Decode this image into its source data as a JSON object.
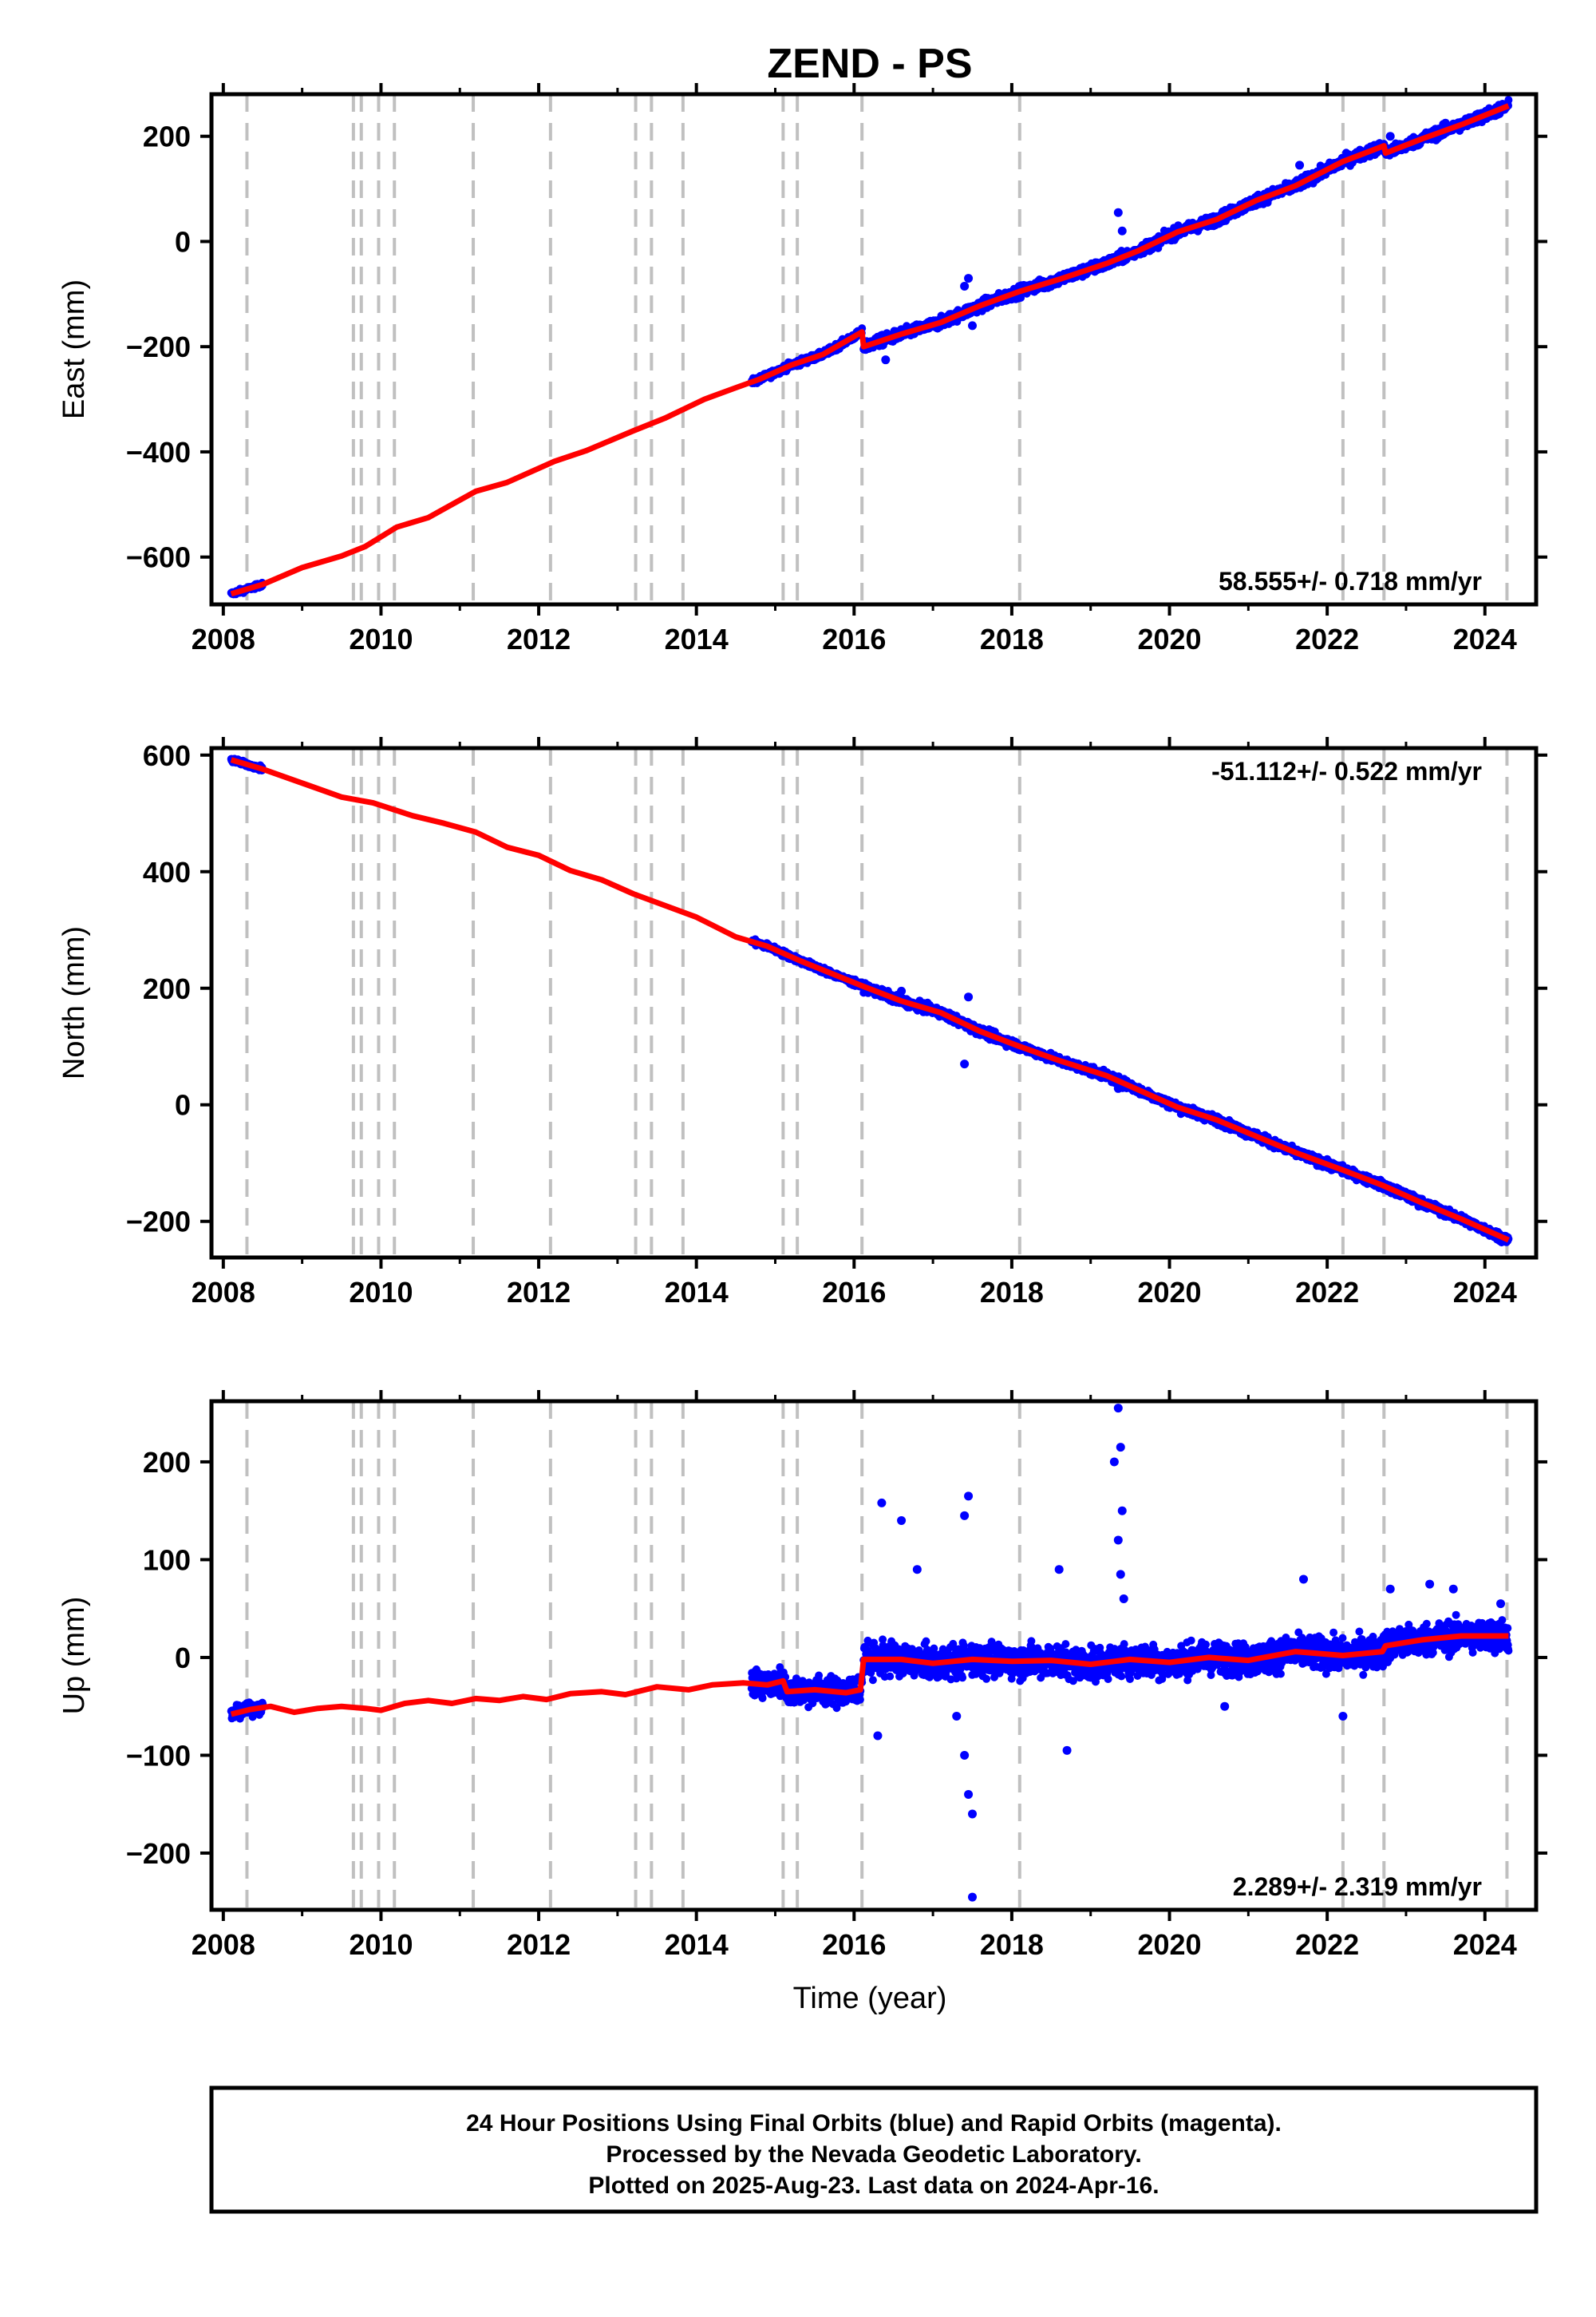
{
  "title": "ZEND - PS",
  "xlabel": "Time (year)",
  "footer": {
    "line1": "24 Hour Positions Using Final Orbits (blue) and Rapid Orbits (magenta).",
    "line2": "Processed by the Nevada Geodetic Laboratory.",
    "line3": "Plotted on 2025-Aug-23. Last data on 2024-Apr-16."
  },
  "colors": {
    "data": "#0000ff",
    "model": "#ff0000",
    "events": "#c0c0c0"
  },
  "chart_data": [
    {
      "type": "scatter",
      "component": "east",
      "ylabel": "East (mm)",
      "rate_text": "58.555+/- 0.718 mm/yr",
      "xlim": [
        2007.85,
        2024.65
      ],
      "ylim": [
        -690,
        280
      ],
      "xticks": [
        2008,
        2010,
        2012,
        2014,
        2016,
        2018,
        2020,
        2022,
        2024
      ],
      "yticks": [
        -600,
        -400,
        -200,
        0,
        200
      ],
      "event_lines": [
        2008.3,
        2009.65,
        2009.75,
        2009.97,
        2010.17,
        2011.17,
        2012.15,
        2013.23,
        2013.43,
        2013.83,
        2015.1,
        2015.28,
        2016.1,
        2018.1,
        2022.2,
        2022.72,
        2024.28
      ],
      "model_line": [
        [
          2008.1,
          -670
        ],
        [
          2008.5,
          -652
        ],
        [
          2009.0,
          -620
        ],
        [
          2009.5,
          -598
        ],
        [
          2009.8,
          -580
        ],
        [
          2010.2,
          -543
        ],
        [
          2010.6,
          -525
        ],
        [
          2011.2,
          -475
        ],
        [
          2011.6,
          -458
        ],
        [
          2012.2,
          -418
        ],
        [
          2012.6,
          -398
        ],
        [
          2013.2,
          -360
        ],
        [
          2013.6,
          -336
        ],
        [
          2014.1,
          -300
        ],
        [
          2014.5,
          -278
        ],
        [
          2014.8,
          -262
        ],
        [
          2015.2,
          -235
        ],
        [
          2015.6,
          -215
        ],
        [
          2016.1,
          -172
        ],
        [
          2016.12,
          -200
        ],
        [
          2016.6,
          -176
        ],
        [
          2017.1,
          -154
        ],
        [
          2017.6,
          -122
        ],
        [
          2018.1,
          -95
        ],
        [
          2018.6,
          -72
        ],
        [
          2019.2,
          -42
        ],
        [
          2019.6,
          -18
        ],
        [
          2020.1,
          18
        ],
        [
          2020.6,
          42
        ],
        [
          2021.1,
          78
        ],
        [
          2021.6,
          106
        ],
        [
          2022.2,
          152
        ],
        [
          2022.72,
          182
        ],
        [
          2022.74,
          168
        ],
        [
          2023.2,
          195
        ],
        [
          2023.7,
          222
        ],
        [
          2024.3,
          258
        ]
      ],
      "observed": {
        "segments": [
          {
            "from": 2008.1,
            "to": 2008.5,
            "scatter_mm": 4
          },
          {
            "from": 2014.7,
            "to": 2016.1,
            "scatter_mm": 6
          },
          {
            "from": 2016.12,
            "to": 2024.3,
            "scatter_mm": 10
          }
        ],
        "outliers": [
          [
            2016.4,
            -225
          ],
          [
            2016.6,
            -180
          ],
          [
            2017.45,
            -70
          ],
          [
            2017.4,
            -85
          ],
          [
            2017.5,
            -160
          ],
          [
            2019.35,
            55
          ],
          [
            2019.4,
            20
          ],
          [
            2021.65,
            145
          ],
          [
            2022.8,
            200
          ],
          [
            2023.5,
            225
          ]
        ]
      }
    },
    {
      "type": "scatter",
      "component": "north",
      "ylabel": "North (mm)",
      "rate_text": "-51.112+/- 0.522 mm/yr",
      "xlim": [
        2007.85,
        2024.65
      ],
      "ylim": [
        -262,
        612
      ],
      "xticks": [
        2008,
        2010,
        2012,
        2014,
        2016,
        2018,
        2020,
        2022,
        2024
      ],
      "yticks": [
        -200,
        0,
        200,
        400,
        600
      ],
      "event_lines": [
        2008.3,
        2009.65,
        2009.75,
        2009.97,
        2010.17,
        2011.17,
        2012.15,
        2013.23,
        2013.43,
        2013.83,
        2015.1,
        2015.28,
        2016.1,
        2018.1,
        2022.2,
        2022.72,
        2024.28
      ],
      "model_line": [
        [
          2008.1,
          592
        ],
        [
          2008.5,
          576
        ],
        [
          2009.0,
          552
        ],
        [
          2009.5,
          528
        ],
        [
          2009.9,
          518
        ],
        [
          2010.4,
          496
        ],
        [
          2010.8,
          483
        ],
        [
          2011.2,
          468
        ],
        [
          2011.6,
          442
        ],
        [
          2012.0,
          428
        ],
        [
          2012.4,
          402
        ],
        [
          2012.8,
          386
        ],
        [
          2013.2,
          362
        ],
        [
          2013.6,
          342
        ],
        [
          2014.0,
          322
        ],
        [
          2014.5,
          288
        ],
        [
          2014.9,
          272
        ],
        [
          2015.3,
          248
        ],
        [
          2015.7,
          226
        ],
        [
          2016.1,
          204
        ],
        [
          2016.6,
          178
        ],
        [
          2017.1,
          158
        ],
        [
          2017.6,
          126
        ],
        [
          2018.1,
          100
        ],
        [
          2018.6,
          76
        ],
        [
          2019.2,
          50
        ],
        [
          2019.6,
          26
        ],
        [
          2020.1,
          -4
        ],
        [
          2020.6,
          -26
        ],
        [
          2021.1,
          -54
        ],
        [
          2021.6,
          -82
        ],
        [
          2022.2,
          -112
        ],
        [
          2022.7,
          -138
        ],
        [
          2023.2,
          -168
        ],
        [
          2023.7,
          -196
        ],
        [
          2024.3,
          -232
        ]
      ],
      "observed": {
        "segments": [
          {
            "from": 2008.1,
            "to": 2008.5,
            "scatter_mm": 4
          },
          {
            "from": 2014.7,
            "to": 2016.1,
            "scatter_mm": 5
          },
          {
            "from": 2016.12,
            "to": 2024.3,
            "scatter_mm": 7
          }
        ],
        "outliers": [
          [
            2017.45,
            185
          ],
          [
            2017.4,
            70
          ],
          [
            2016.6,
            195
          ],
          [
            2019.35,
            28
          ],
          [
            2023.6,
            -192
          ]
        ]
      }
    },
    {
      "type": "scatter",
      "component": "up",
      "ylabel": "Up (mm)",
      "rate_text": "2.289+/- 2.319 mm/yr",
      "xlim": [
        2007.85,
        2024.65
      ],
      "ylim": [
        -258,
        262
      ],
      "xticks": [
        2008,
        2010,
        2012,
        2014,
        2016,
        2018,
        2020,
        2022,
        2024
      ],
      "yticks": [
        -200,
        -100,
        0,
        100,
        200
      ],
      "event_lines": [
        2008.3,
        2009.65,
        2009.75,
        2009.97,
        2010.17,
        2011.17,
        2012.15,
        2013.23,
        2013.43,
        2013.83,
        2015.1,
        2015.28,
        2016.1,
        2018.1,
        2022.2,
        2022.72,
        2024.28
      ],
      "model_line": [
        [
          2008.1,
          -58
        ],
        [
          2008.35,
          -53
        ],
        [
          2008.6,
          -50
        ],
        [
          2008.9,
          -56
        ],
        [
          2009.2,
          -52
        ],
        [
          2009.5,
          -50
        ],
        [
          2009.8,
          -52
        ],
        [
          2010.0,
          -54
        ],
        [
          2010.3,
          -47
        ],
        [
          2010.6,
          -44
        ],
        [
          2010.9,
          -47
        ],
        [
          2011.2,
          -42
        ],
        [
          2011.5,
          -44
        ],
        [
          2011.8,
          -40
        ],
        [
          2012.1,
          -43
        ],
        [
          2012.4,
          -37
        ],
        [
          2012.8,
          -35
        ],
        [
          2013.1,
          -38
        ],
        [
          2013.5,
          -30
        ],
        [
          2013.9,
          -33
        ],
        [
          2014.2,
          -28
        ],
        [
          2014.6,
          -26
        ],
        [
          2014.9,
          -28
        ],
        [
          2015.1,
          -24
        ],
        [
          2015.15,
          -35
        ],
        [
          2015.5,
          -33
        ],
        [
          2015.9,
          -36
        ],
        [
          2016.08,
          -33
        ],
        [
          2016.12,
          -2
        ],
        [
          2016.6,
          -2
        ],
        [
          2017.0,
          -6
        ],
        [
          2017.5,
          -2
        ],
        [
          2018.0,
          -4
        ],
        [
          2018.5,
          -3
        ],
        [
          2019.0,
          -7
        ],
        [
          2019.5,
          -2
        ],
        [
          2020.0,
          -5
        ],
        [
          2020.5,
          0
        ],
        [
          2021.0,
          -3
        ],
        [
          2021.6,
          6
        ],
        [
          2022.2,
          2
        ],
        [
          2022.7,
          6
        ],
        [
          2022.74,
          12
        ],
        [
          2023.2,
          18
        ],
        [
          2023.7,
          22
        ],
        [
          2024.3,
          22
        ]
      ],
      "observed": {
        "segments": [
          {
            "from": 2008.1,
            "to": 2008.5,
            "scatter_mm": 6
          },
          {
            "from": 2014.7,
            "to": 2016.1,
            "scatter_mm": 14
          },
          {
            "from": 2016.12,
            "to": 2024.3,
            "scatter_mm": 16
          }
        ],
        "outliers": [
          [
            2016.35,
            158
          ],
          [
            2016.6,
            140
          ],
          [
            2016.8,
            90
          ],
          [
            2016.3,
            -80
          ],
          [
            2017.45,
            165
          ],
          [
            2017.4,
            145
          ],
          [
            2017.5,
            -160
          ],
          [
            2017.45,
            -140
          ],
          [
            2017.5,
            -245
          ],
          [
            2017.4,
            -100
          ],
          [
            2017.3,
            -60
          ],
          [
            2018.6,
            90
          ],
          [
            2018.7,
            -95
          ],
          [
            2019.35,
            255
          ],
          [
            2019.38,
            215
          ],
          [
            2019.3,
            200
          ],
          [
            2019.4,
            150
          ],
          [
            2019.35,
            120
          ],
          [
            2019.38,
            85
          ],
          [
            2019.42,
            60
          ],
          [
            2020.7,
            -50
          ],
          [
            2021.7,
            80
          ],
          [
            2022.2,
            -60
          ],
          [
            2022.8,
            70
          ],
          [
            2023.3,
            75
          ],
          [
            2023.6,
            70
          ],
          [
            2024.2,
            55
          ]
        ]
      }
    }
  ]
}
